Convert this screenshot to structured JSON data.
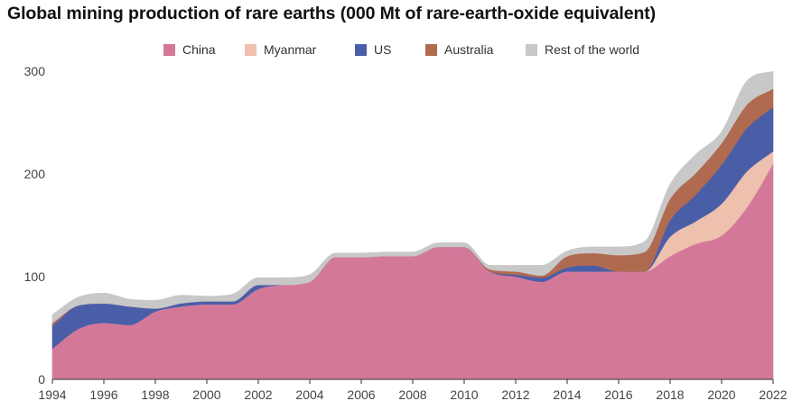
{
  "chart_data": {
    "type": "area",
    "stacked": true,
    "title": "Global mining production of rare earths (000 Mt of rare-earth-oxide equivalent)",
    "xlabel": "",
    "ylabel": "",
    "ylim": [
      0,
      300
    ],
    "xlim": [
      1994,
      2022
    ],
    "grid": false,
    "legend_position": "top-center",
    "x": [
      1994,
      1995,
      1996,
      1997,
      1998,
      1999,
      2000,
      2001,
      2002,
      2003,
      2004,
      2005,
      2006,
      2007,
      2008,
      2009,
      2010,
      2011,
      2012,
      2013,
      2014,
      2015,
      2016,
      2017,
      2018,
      2019,
      2020,
      2021,
      2022
    ],
    "series": [
      {
        "name": "China",
        "color": "#d4789a",
        "values": [
          30,
          49,
          55,
          53,
          66,
          71,
          73,
          73,
          88,
          92,
          95,
          119,
          119,
          120,
          120,
          129,
          129,
          105,
          100,
          95,
          105,
          105,
          105,
          105,
          120,
          132,
          140,
          168,
          210
        ]
      },
      {
        "name": "Myanmar",
        "color": "#eec0ae",
        "values": [
          0,
          0,
          0,
          0,
          0,
          0,
          0,
          0,
          0,
          0,
          0,
          0,
          0,
          0,
          0,
          0,
          0,
          0,
          0,
          0,
          0,
          0,
          0,
          0,
          19,
          22,
          31,
          35,
          12
        ]
      },
      {
        "name": "US",
        "color": "#4a5ea8",
        "values": [
          22,
          23,
          19,
          18,
          3,
          3,
          3,
          3,
          4,
          0,
          0,
          0,
          0,
          0,
          0,
          0,
          0,
          0,
          2,
          4,
          4,
          6,
          0,
          0,
          16,
          26,
          38,
          42,
          43
        ]
      },
      {
        "name": "Australia",
        "color": "#b06a50",
        "values": [
          3,
          0,
          0,
          0,
          0,
          0,
          0,
          0,
          0,
          0,
          0,
          0,
          0,
          0,
          0,
          0,
          0,
          2,
          3,
          2,
          11,
          12,
          16,
          19,
          21,
          21,
          21,
          23,
          18
        ]
      },
      {
        "name": "Rest of the world",
        "color": "#c8c8c8",
        "values": [
          8,
          8,
          10,
          7,
          8,
          8,
          5,
          7,
          7,
          7,
          7,
          4,
          4,
          4,
          4,
          4,
          4,
          4,
          6,
          10,
          5,
          6,
          8,
          10,
          14,
          18,
          11,
          23,
          17
        ]
      }
    ],
    "x_ticks": [
      "1994",
      "1996",
      "1998",
      "2000",
      "2002",
      "2004",
      "2006",
      "2008",
      "2010",
      "2012",
      "2014",
      "2016",
      "2018",
      "2020",
      "2022"
    ],
    "y_ticks": [
      "0",
      "100",
      "200",
      "300"
    ]
  }
}
